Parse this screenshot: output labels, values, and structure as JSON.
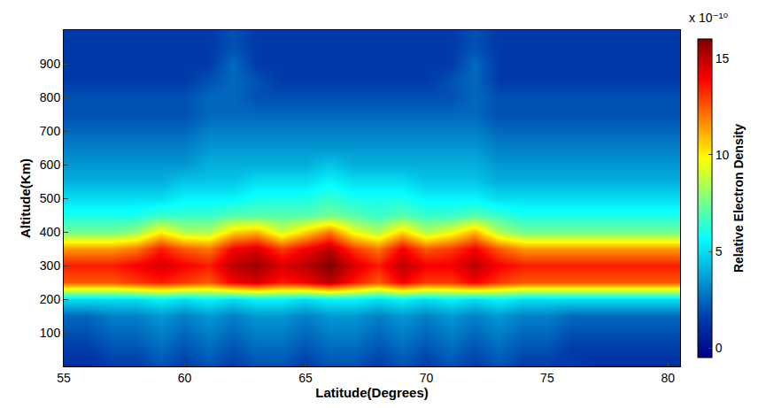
{
  "chart_data": {
    "type": "heatmap",
    "x_label": "Latitude(Degrees)",
    "y_label": "Altitude(Km)",
    "x": [
      55,
      56,
      57,
      58,
      59,
      60,
      61,
      62,
      63,
      64,
      65,
      66,
      67,
      68,
      69,
      70,
      71,
      72,
      73,
      74,
      75,
      76,
      77,
      78,
      79,
      80
    ],
    "y": [
      0,
      50,
      100,
      150,
      200,
      250,
      300,
      350,
      400,
      450,
      500,
      550,
      600,
      650,
      700,
      750,
      800,
      850,
      900,
      950,
      1000
    ],
    "z": [
      [
        1,
        1,
        1.5,
        1.5,
        2,
        1.5,
        2,
        1.5,
        2,
        2,
        1.5,
        2,
        2,
        1.5,
        2,
        1.5,
        2,
        1.5,
        2,
        1.5,
        1.5,
        1.5,
        1,
        1,
        1,
        1
      ],
      [
        1.5,
        1.5,
        2,
        2,
        2.5,
        2,
        2.5,
        2,
        2.5,
        2.5,
        2,
        2.5,
        2.5,
        2,
        2.5,
        2,
        2.5,
        2,
        2.5,
        2,
        2,
        1.5,
        1.5,
        1.5,
        1.5,
        1.5
      ],
      [
        2,
        2,
        2.5,
        2.5,
        3,
        2.5,
        3,
        2.5,
        3,
        3,
        2.5,
        3,
        3,
        2.5,
        3,
        2.5,
        3,
        2.5,
        3,
        2.5,
        2.5,
        2,
        2,
        2,
        2,
        2
      ],
      [
        2.5,
        2.5,
        3,
        3,
        3.5,
        3,
        3.5,
        3,
        3.5,
        3.5,
        3,
        3.5,
        3.5,
        3,
        3.5,
        3,
        3.5,
        3,
        3.5,
        3,
        3,
        2.5,
        2.5,
        2.5,
        2.5,
        2.5
      ],
      [
        5,
        5,
        5,
        5,
        5.5,
        5,
        5.5,
        5,
        5.5,
        5.5,
        5,
        5.5,
        5.5,
        5,
        5.5,
        5,
        5.5,
        5,
        5.5,
        5,
        5,
        5,
        5,
        5,
        5,
        5
      ],
      [
        12.5,
        12.5,
        12.5,
        13,
        13.5,
        13,
        12.5,
        14,
        14.5,
        13.5,
        14,
        15,
        13.5,
        12.5,
        14,
        13,
        13,
        14,
        13,
        12.5,
        12.5,
        12.5,
        12.5,
        12.5,
        12.5,
        12.5
      ],
      [
        13.5,
        13.5,
        13.5,
        14,
        14.5,
        14,
        13.5,
        15,
        15.5,
        14.5,
        15,
        16,
        14.5,
        13.5,
        15,
        14,
        14,
        15,
        14,
        13.5,
        13.5,
        13.5,
        13.5,
        13.5,
        13.5,
        13.5
      ],
      [
        11.5,
        11.5,
        11.5,
        12,
        13.5,
        12.5,
        12,
        14,
        14.5,
        13,
        14,
        15,
        13,
        12,
        14,
        12.5,
        13,
        14,
        12.5,
        11.5,
        11.5,
        11.5,
        11.5,
        11.5,
        11.5,
        11.5
      ],
      [
        7.5,
        7.5,
        7.5,
        8,
        10,
        8.5,
        8.5,
        10.5,
        11,
        9,
        10.5,
        12,
        9.5,
        8.5,
        10.5,
        8.5,
        9.5,
        11,
        8.5,
        7.5,
        7.5,
        7.5,
        7.5,
        7.5,
        7.5,
        7.5
      ],
      [
        6,
        6,
        6,
        6,
        6.5,
        6.5,
        6.5,
        7,
        7,
        7,
        7,
        7.5,
        7,
        6.5,
        7,
        6.5,
        6.5,
        7,
        6.5,
        6,
        6,
        6,
        6,
        6,
        6,
        6
      ],
      [
        5,
        5,
        5,
        5,
        5,
        5.5,
        5.5,
        5.5,
        6,
        6,
        6,
        6.5,
        6,
        6,
        6,
        5.5,
        5.5,
        5.5,
        5,
        5,
        5,
        5,
        5,
        5,
        5,
        5
      ],
      [
        4,
        4,
        4,
        4,
        4,
        4.5,
        4.5,
        4.5,
        5,
        5,
        5,
        5.5,
        5,
        5,
        5,
        4.5,
        4.5,
        4.5,
        4,
        4,
        4,
        4,
        4,
        4,
        4,
        4
      ],
      [
        3.5,
        3.5,
        3.5,
        3.5,
        3.5,
        3.5,
        4,
        4,
        4,
        4,
        4,
        4.5,
        4,
        4,
        4,
        4,
        4,
        4,
        3.5,
        3.5,
        3.5,
        3.5,
        3.5,
        3.5,
        3.5,
        3.5
      ],
      [
        3,
        3,
        3,
        3,
        3,
        3,
        3.5,
        3.5,
        3.5,
        3.5,
        3.5,
        3.5,
        3.5,
        3.5,
        3.5,
        3.5,
        3.5,
        3.5,
        3,
        3,
        3,
        3,
        3,
        3,
        3,
        3
      ],
      [
        2.5,
        2.5,
        2.5,
        2.5,
        2.5,
        2.5,
        3,
        3,
        3,
        3,
        3,
        3,
        3,
        3,
        3,
        3,
        3,
        3,
        2.5,
        2.5,
        2.5,
        2.5,
        2.5,
        2.5,
        2.5,
        2.5
      ],
      [
        2,
        2,
        2,
        2,
        2,
        2,
        2.5,
        2.5,
        2.5,
        2.5,
        2.5,
        2.5,
        2.5,
        2.5,
        2.5,
        2.5,
        2.5,
        2.5,
        2,
        2,
        2,
        2,
        2,
        2,
        2,
        2
      ],
      [
        2,
        2,
        2,
        2,
        2,
        2,
        2.5,
        2.5,
        2,
        2,
        2,
        2,
        2,
        2,
        2,
        2,
        2,
        2.5,
        2,
        2,
        2,
        2,
        2,
        2,
        2,
        2
      ],
      [
        1.5,
        1.5,
        1.5,
        1.5,
        1.5,
        1.5,
        2,
        2.5,
        2,
        1.5,
        1.5,
        1.5,
        1.5,
        1.5,
        1.5,
        1.5,
        2,
        2.5,
        1.5,
        1.5,
        1.5,
        1.5,
        1.5,
        1.5,
        1.5,
        1.5
      ],
      [
        1.5,
        1.5,
        1.5,
        1.5,
        1.5,
        1.5,
        1.5,
        2.5,
        1.5,
        1.5,
        1.5,
        1.5,
        1.5,
        1.5,
        1.5,
        1.5,
        1.5,
        2.5,
        1.5,
        1.5,
        1.5,
        1.5,
        1.5,
        1.5,
        1.5,
        1.5
      ],
      [
        1.5,
        1.5,
        1.5,
        1.5,
        1.5,
        1.5,
        1.5,
        2,
        1.5,
        1.5,
        1.5,
        1.5,
        1.5,
        1.5,
        1.5,
        1.5,
        1.5,
        2,
        1.5,
        1.5,
        1.5,
        1.5,
        1.5,
        1.5,
        1.5,
        1.5
      ],
      [
        1.5,
        1.5,
        1.5,
        1.5,
        1.5,
        1.5,
        1.5,
        2,
        1.5,
        1.5,
        1.5,
        1.5,
        1.5,
        1.5,
        1.5,
        1.5,
        1.5,
        2,
        1.5,
        1.5,
        1.5,
        1.5,
        1.5,
        1.5,
        1.5,
        1.5
      ]
    ],
    "xlim": [
      55,
      80.5
    ],
    "xticks": [
      55,
      60,
      65,
      70,
      75,
      80
    ],
    "ylim": [
      0,
      1000
    ],
    "yticks": [
      100,
      200,
      300,
      400,
      500,
      600,
      700,
      800,
      900
    ],
    "color": "Jet",
    "colorbar": {
      "title": "Relative Electron Density",
      "multiplier": "x 10⁻¹⁰",
      "range": [
        -0.5,
        16
      ],
      "ticks": [
        0,
        5,
        10,
        15
      ]
    }
  }
}
